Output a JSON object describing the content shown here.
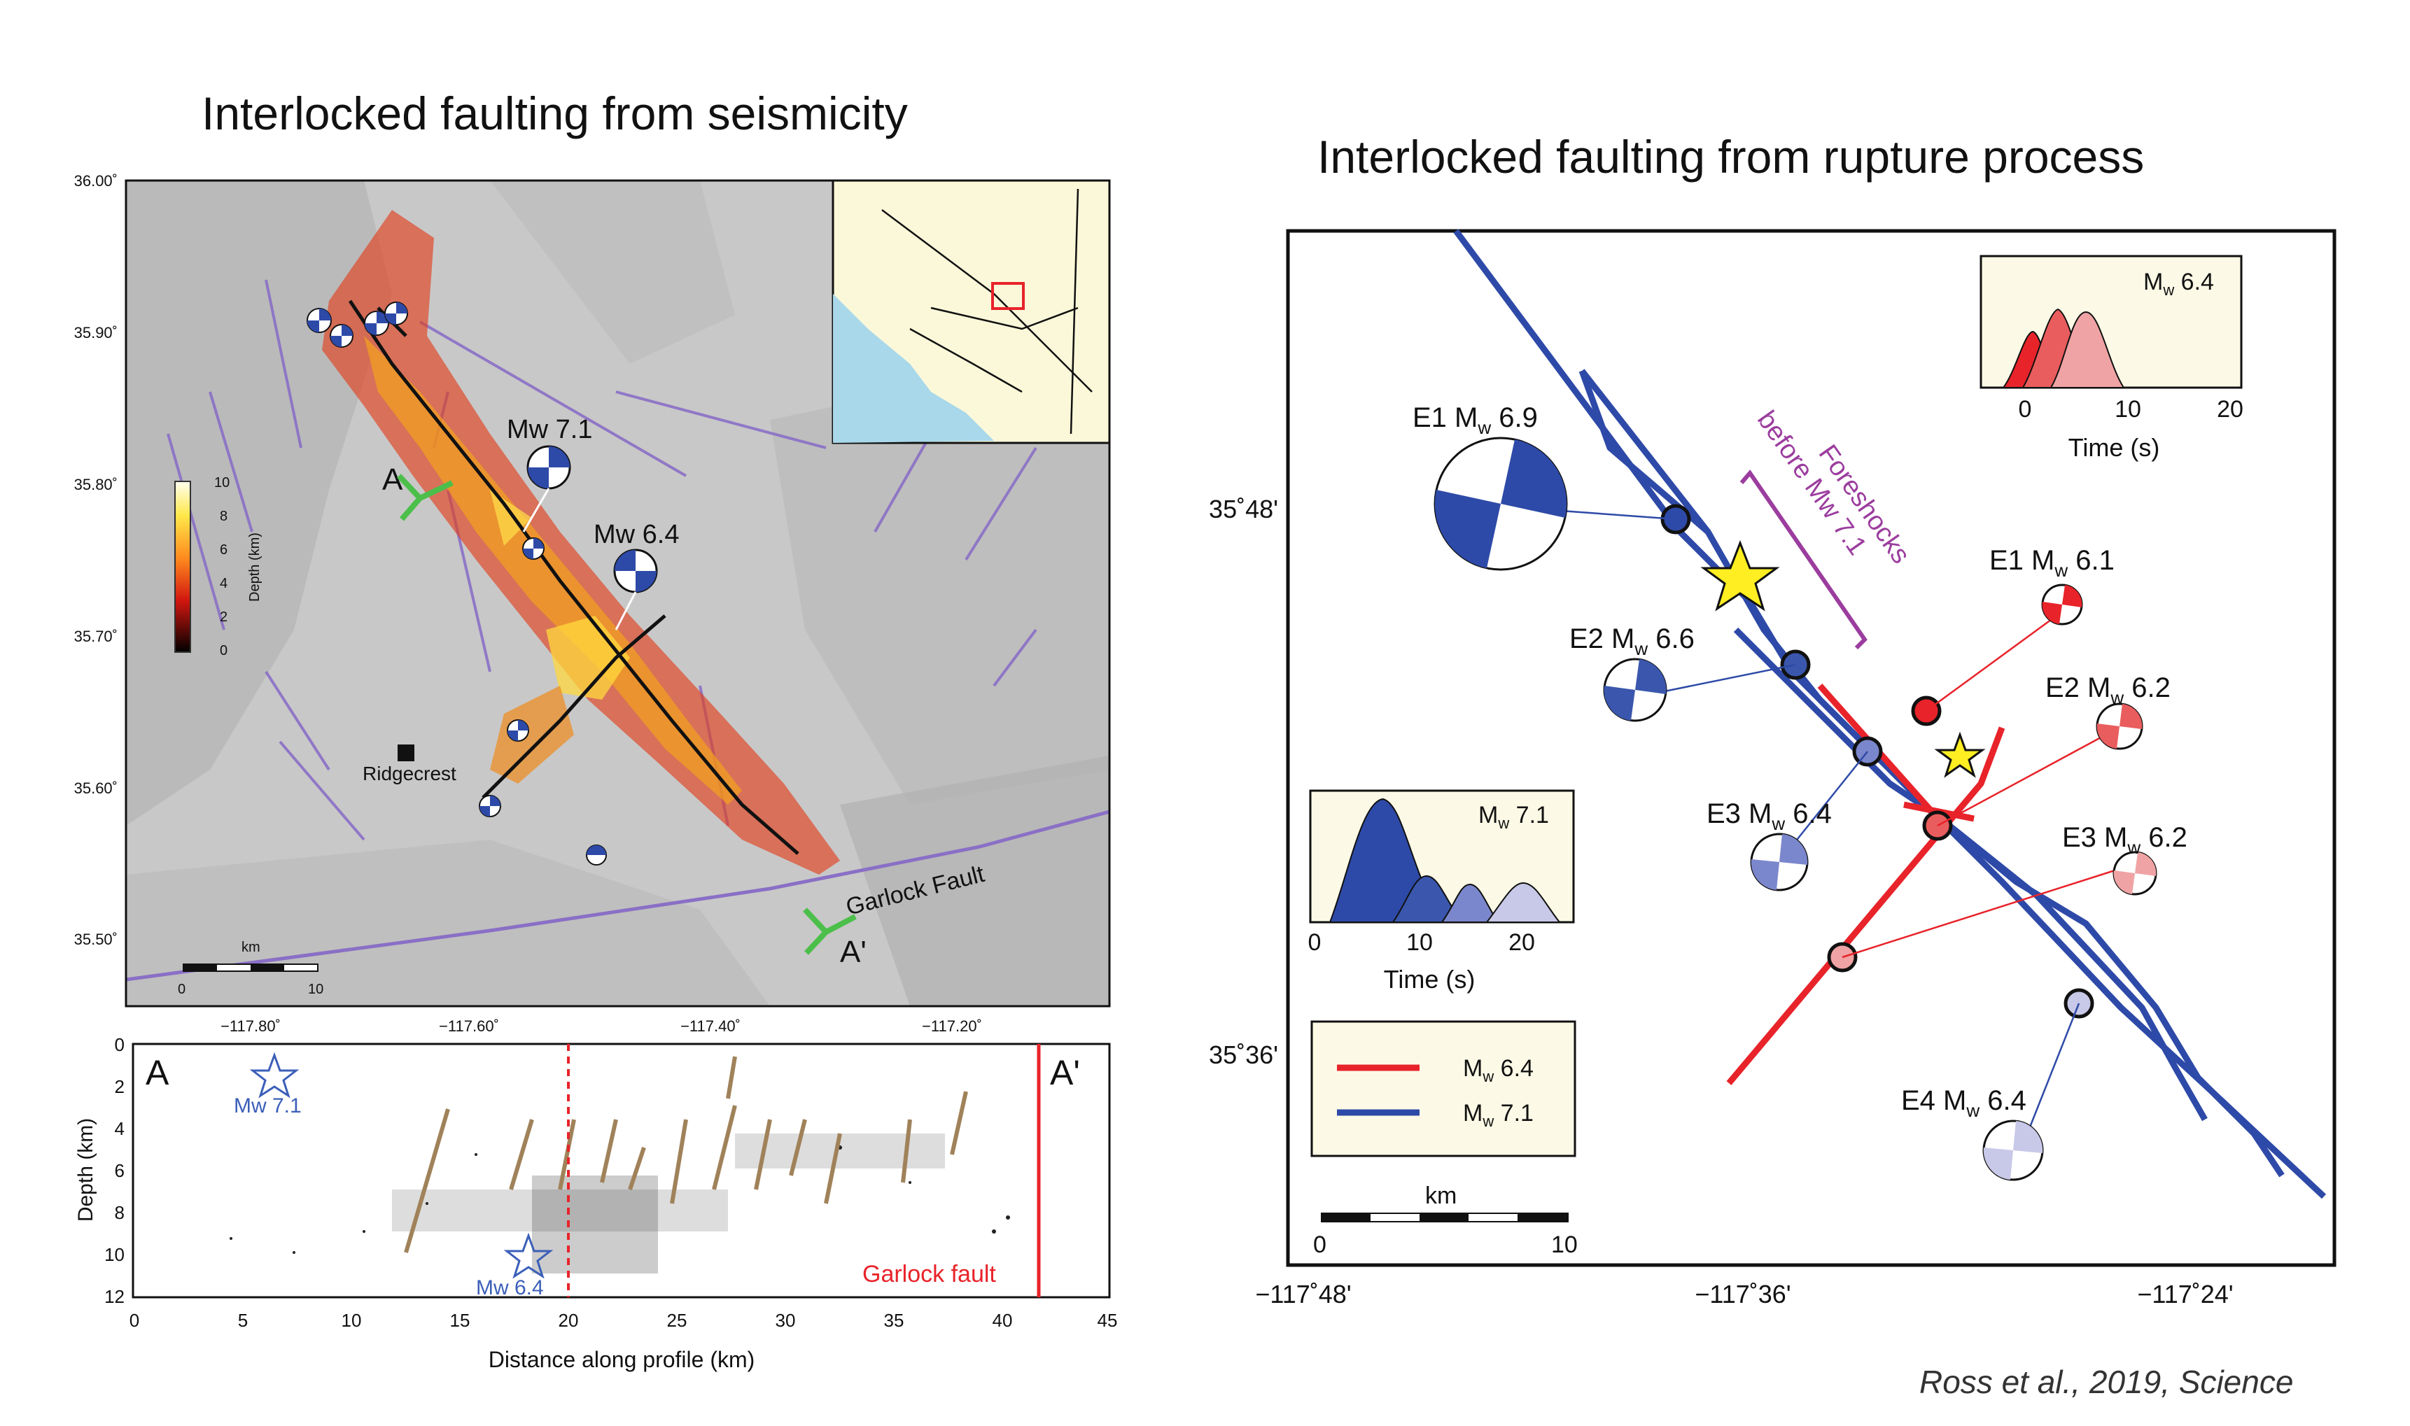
{
  "left": {
    "title": "Interlocked faulting from seismicity",
    "map": {
      "lat_ticks": [
        "36.00˚",
        "35.90˚",
        "35.80˚",
        "35.70˚",
        "35.60˚",
        "35.50˚"
      ],
      "lon_ticks": [
        "−117.80˚",
        "−117.60˚",
        "−117.40˚",
        "−117.20˚"
      ],
      "colorbar": {
        "label": "Depth (km)",
        "ticks": [
          "10",
          "8",
          "6",
          "4",
          "2",
          "0"
        ]
      },
      "labels": {
        "a": "A",
        "a_prime": "A'",
        "mw71": "Mw 7.1",
        "mw64": "Mw 6.4",
        "ridgecrest": "Ridgecrest",
        "garlock": "Garlock Fault",
        "scale_unit": "km",
        "scale_0": "0",
        "scale_10": "10"
      }
    },
    "profile": {
      "a": "A",
      "a_prime": "A'",
      "ylabel": "Depth (km)",
      "xlabel": "Distance along profile (km)",
      "y_ticks": [
        "0",
        "2",
        "4",
        "6",
        "8",
        "10",
        "12"
      ],
      "x_ticks": [
        "0",
        "5",
        "10",
        "15",
        "20",
        "25",
        "30",
        "35",
        "40",
        "45"
      ],
      "mw71": "Mw 7.1",
      "mw64": "Mw 6.4",
      "garlock": "Garlock fault"
    }
  },
  "right": {
    "title": "Interlocked faulting from rupture process",
    "lat_ticks": [
      "35˚48'",
      "35˚36'"
    ],
    "lon_ticks": [
      "−117˚48'",
      "−117˚36'",
      "−117˚24'"
    ],
    "foreshocks_line1": "Foreshocks",
    "foreshocks_line2": "before Mw 7.1",
    "events": {
      "e1_69": {
        "id": "E1 M",
        "sub": "w",
        "mag": " 6.9"
      },
      "e2_66": {
        "id": "E2 M",
        "sub": "w",
        "mag": " 6.6"
      },
      "e3_64": {
        "id": "E3 M",
        "sub": "w",
        "mag": " 6.4"
      },
      "e4_64": {
        "id": "E4 M",
        "sub": "w",
        "mag": " 6.4"
      },
      "e1_61": {
        "id": "E1 M",
        "sub": "w",
        "mag": " 6.1"
      },
      "e2_62": {
        "id": "E2 M",
        "sub": "w",
        "mag": " 6.2"
      },
      "e3_62": {
        "id": "E3 M",
        "sub": "w",
        "mag": " 6.2"
      }
    },
    "inset64": {
      "label": "M",
      "sub": "w",
      "mag": " 6.4",
      "xlabel": "Time (s)",
      "ticks": [
        "0",
        "10",
        "20"
      ]
    },
    "inset71": {
      "label": "M",
      "sub": "w",
      "mag": " 7.1",
      "xlabel": "Time (s)",
      "ticks": [
        "0",
        "10",
        "20"
      ]
    },
    "legend": [
      {
        "label": "M",
        "sub": "w",
        "mag": " 6.4",
        "color": "#e8232a"
      },
      {
        "label": "M",
        "sub": "w",
        "mag": " 7.1",
        "color": "#2e4aa8"
      }
    ],
    "scale": {
      "unit": "km",
      "zero": "0",
      "ten": "10"
    }
  },
  "citation": "Ross et al., 2019, Science",
  "colors": {
    "mw64_red": "#e8232a",
    "mw71_blue": "#2e4aa8",
    "foreshock_purple": "#9b3d9e",
    "garlock_red": "#e8232a",
    "fault_purple": "#8a6fc6"
  }
}
